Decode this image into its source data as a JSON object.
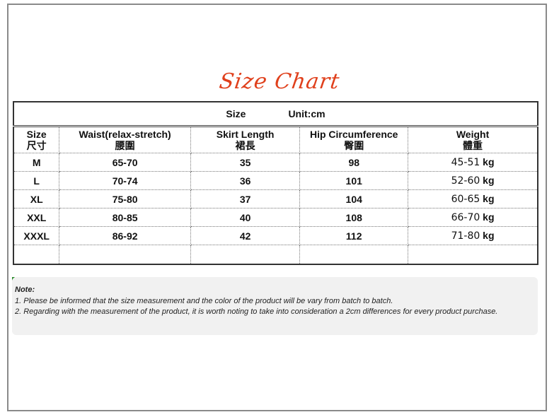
{
  "title": "Size Chart",
  "table": {
    "caption_size": "Size",
    "caption_unit": "Unit:cm",
    "headers": [
      [
        "Size",
        "尺寸"
      ],
      [
        "Waist(relax-stretch)",
        "腰圍"
      ],
      [
        "Skirt Length",
        "裙長"
      ],
      [
        "Hip Circumference",
        "臀圍"
      ],
      [
        "Weight",
        "體重"
      ]
    ],
    "rows": [
      [
        "M",
        "65-70",
        "35",
        "98",
        "45-51",
        "kg"
      ],
      [
        "L",
        "70-74",
        "36",
        "101",
        "52-60",
        "kg"
      ],
      [
        "XL",
        "75-80",
        "37",
        "104",
        "60-65",
        "kg"
      ],
      [
        "XXL",
        "80-85",
        "40",
        "108",
        "66-70",
        "kg"
      ],
      [
        "XXXL",
        "86-92",
        "42",
        "112",
        "71-80",
        "kg"
      ]
    ]
  },
  "note": {
    "heading": "Note:",
    "line1": "1. Please be informed that the size measurement and the color of the product will be vary from batch to batch.",
    "line2": "2. Regarding with the measurement of the product, it is worth noting to take into consideration a 2cm differences for every product purchase."
  }
}
